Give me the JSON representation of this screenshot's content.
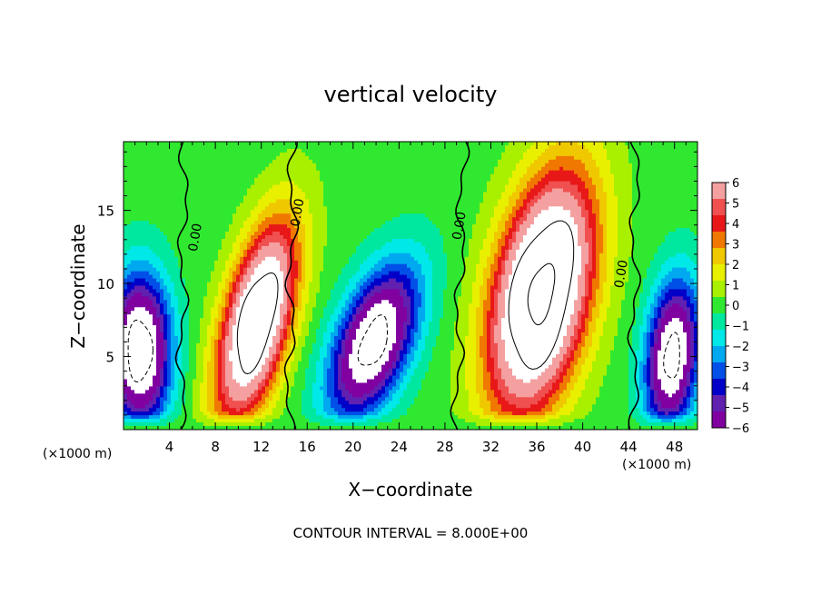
{
  "chart_data": {
    "type": "heatmap",
    "title": "vertical velocity",
    "xlabel": "X−coordinate",
    "ylabel": "Z−coordinate",
    "x_unit_left": "(×1000 m)",
    "x_unit_right": "(×1000 m)",
    "footer": "CONTOUR INTERVAL = 8.000E+00",
    "xlim": [
      0,
      50
    ],
    "ylim": [
      0,
      19.7
    ],
    "x_ticks": [
      4,
      8,
      12,
      16,
      20,
      24,
      28,
      32,
      36,
      40,
      44,
      48
    ],
    "x_tick_labels": [
      "4",
      "8",
      "12",
      "16",
      "20",
      "24",
      "28",
      "32",
      "36",
      "40",
      "44",
      "48"
    ],
    "y_ticks": [
      5,
      10,
      15
    ],
    "y_tick_labels": [
      "5",
      "10",
      "15"
    ],
    "colorbar": {
      "values": [
        6,
        5,
        4,
        3,
        2,
        1,
        0,
        -1,
        -2,
        -3,
        -4,
        -5,
        -6
      ],
      "labels": [
        "6",
        "5",
        "4",
        "3",
        "2",
        "1",
        "0",
        "−1",
        "−2",
        "−3",
        "−4",
        "−5",
        "−6"
      ],
      "colors": [
        "#f4a0a0",
        "#f05050",
        "#e81818",
        "#f07800",
        "#f0c800",
        "#e8f000",
        "#a8f000",
        "#30e830",
        "#00e8a0",
        "#00e8e8",
        "#00a8f0",
        "#0050e8",
        "#0000c8",
        "#6020b0",
        "#8000a0"
      ]
    },
    "contour_labels": [
      {
        "text": "0.00",
        "x": 6.6,
        "z": 13.1
      },
      {
        "text": "0.00",
        "x": 15.5,
        "z": 14.8
      },
      {
        "text": "0.00",
        "x": 29.6,
        "z": 13.9
      },
      {
        "text": "0.00",
        "x": 43.7,
        "z": 10.6
      }
    ],
    "updrafts": [
      {
        "x": 11.6,
        "z": 7.4,
        "sx": 2.8,
        "sz": 6.5,
        "amp": 10.5,
        "tilt": 0.28
      },
      {
        "x": 36.4,
        "z": 9.3,
        "sx": 4.0,
        "sz": 7.8,
        "amp": 12.0,
        "tilt": 0.22
      }
    ],
    "downdrafts": [
      {
        "x": 1.4,
        "z": 5.4,
        "sx": 2.6,
        "sz": 5.0,
        "amp": -9.5,
        "tilt": 0.0
      },
      {
        "x": 21.8,
        "z": 6.0,
        "sx": 3.2,
        "sz": 5.0,
        "amp": -9.0,
        "tilt": 0.38
      },
      {
        "x": 47.8,
        "z": 5.0,
        "sx": 2.2,
        "sz": 5.0,
        "amp": -8.8,
        "tilt": 0.1
      }
    ],
    "zero_lines": [
      {
        "x_bottom": 5.0,
        "x_top": 5.3
      },
      {
        "x_bottom": 14.4,
        "x_top": 14.8
      },
      {
        "x_bottom": 29.0,
        "x_top": 29.6
      },
      {
        "x_bottom": 44.4,
        "x_top": 44.6
      }
    ]
  }
}
